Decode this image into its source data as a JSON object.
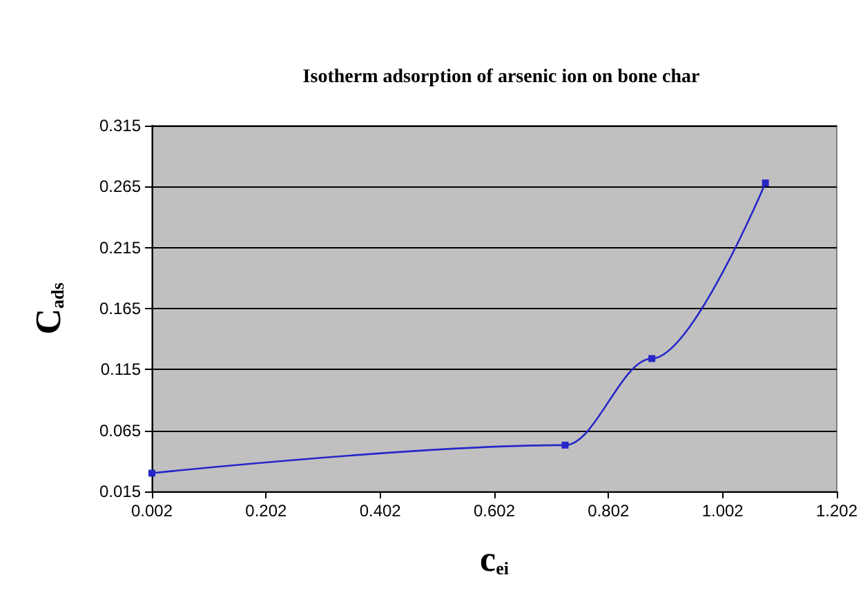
{
  "chart_data": {
    "type": "line",
    "title": "Isotherm adsorption of arsenic ion on bone char",
    "xlabel": "c$_{ei}$",
    "ylabel": "C$_{ads}$",
    "x": [
      0.002,
      0.726,
      0.878,
      1.077
    ],
    "series": [
      {
        "color": "#2626c8",
        "values": [
          0.03,
          0.053,
          0.124,
          0.268
        ]
      }
    ],
    "xlim": [
      0.002,
      1.202
    ],
    "xticks": [
      0.002,
      0.202,
      0.402,
      0.602,
      0.802,
      1.002,
      1.202
    ],
    "ylim": [
      0.015,
      0.315
    ],
    "yticks": [
      0.015,
      0.065,
      0.115,
      0.165,
      0.215,
      0.265,
      0.315
    ],
    "grid": "y",
    "marker": "square",
    "line_style": "solid"
  }
}
